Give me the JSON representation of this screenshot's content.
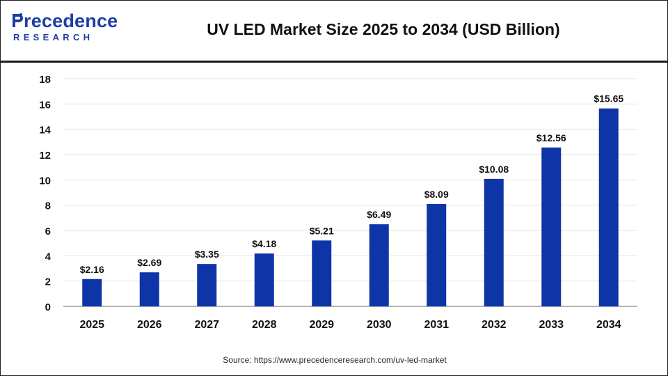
{
  "header": {
    "logo_word_top": "recedence",
    "logo_word_bottom": "RESEARCH",
    "title": "UV LED Market Size 2025 to 2034 (USD Billion)"
  },
  "footer": {
    "source": "Source: https://www.precedenceresearch.com/uv-led-market"
  },
  "colors": {
    "bar": "#0d35a8",
    "brand": "#1d3fa6",
    "grid": "#e3e3e3",
    "axis": "#9a9a9a"
  },
  "chart_data": {
    "type": "bar",
    "title": "UV LED Market Size 2025 to 2034 (USD Billion)",
    "xlabel": "",
    "ylabel": "",
    "categories": [
      "2025",
      "2026",
      "2027",
      "2028",
      "2029",
      "2030",
      "2031",
      "2032",
      "2033",
      "2034"
    ],
    "values": [
      2.16,
      2.69,
      3.35,
      4.18,
      5.21,
      6.49,
      8.09,
      10.08,
      12.56,
      15.65
    ],
    "data_labels": [
      "$2.16",
      "$2.69",
      "$3.35",
      "$4.18",
      "$5.21",
      "$6.49",
      "$8.09",
      "$10.08",
      "$12.56",
      "$15.65"
    ],
    "ylim": [
      0,
      18
    ],
    "yticks": [
      0,
      2,
      4,
      6,
      8,
      10,
      12,
      14,
      16,
      18
    ],
    "grid": true,
    "legend": "none"
  }
}
